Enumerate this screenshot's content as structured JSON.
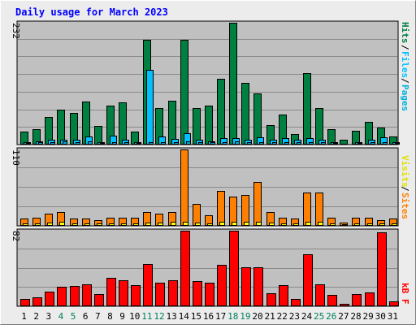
{
  "title": "Daily usage for March 2023",
  "colors": {
    "background": "#ececec",
    "plot_bg": "#c0c0c0",
    "frame": "#000000",
    "grid": "#8a8a8a",
    "title": "#0000ff",
    "hits": "#008040",
    "files": "#00c0ff",
    "pages": "#00b0d8",
    "sites": "#ff8000",
    "visits": "#ffff00",
    "kbf": "#ff0000",
    "weekend_label": "#00805c",
    "weekday_label": "#000000"
  },
  "legend": {
    "hits": "Hits",
    "files": "Files",
    "pages": "Pages",
    "sites": "Sites",
    "visits": "Visits",
    "kbf": "kB F",
    "separator": "/"
  },
  "chart_data": {
    "type": "bar",
    "categories": [
      "1",
      "2",
      "3",
      "4",
      "5",
      "6",
      "7",
      "8",
      "9",
      "10",
      "11",
      "12",
      "13",
      "14",
      "15",
      "16",
      "17",
      "18",
      "19",
      "20",
      "21",
      "22",
      "23",
      "24",
      "25",
      "26",
      "27",
      "28",
      "29",
      "30",
      "31"
    ],
    "weekend_days": [
      "4",
      "5",
      "11",
      "12",
      "18",
      "19",
      "25",
      "26"
    ],
    "panels": [
      {
        "id": "hits-files-pages",
        "ymax_label": "232",
        "ymax": 232,
        "series": [
          {
            "name": "Hits",
            "values": [
              24,
              30,
              52,
              66,
              60,
              82,
              36,
              74,
              81,
              24,
              200,
              70,
              84,
              200,
              70,
              75,
              126,
              232,
              117,
              97,
              37,
              57,
              20,
              136,
              70,
              29,
              10,
              27,
              44,
              33,
              15
            ]
          },
          {
            "name": "Files",
            "values": [
              4,
              6,
              9,
              10,
              9,
              16,
              4,
              17,
              9,
              4,
              142,
              15,
              11,
              22,
              9,
              6,
              12,
              12,
              9,
              14,
              9,
              13,
              9,
              13,
              9,
              5,
              2,
              5,
              9,
              14,
              5
            ]
          },
          {
            "name": "Pages",
            "values": [
              3,
              4,
              5,
              6,
              5,
              6,
              3,
              5,
              5,
              3,
              5,
              5,
              5,
              6,
              5,
              4,
              5,
              6,
              5,
              5,
              4,
              5,
              4,
              5,
              5,
              3,
              2,
              3,
              4,
              4,
              3
            ]
          }
        ]
      },
      {
        "id": "sites-visits",
        "ymax_label": "110",
        "ymax": 110,
        "series": [
          {
            "name": "Sites",
            "values": [
              10,
              12,
              18,
              20,
              10,
              10,
              8,
              12,
              12,
              12,
              20,
              18,
              20,
              110,
              32,
              15,
              50,
              42,
              45,
              63,
              20,
              12,
              10,
              48,
              48,
              12,
              5,
              12,
              12,
              8,
              10
            ]
          },
          {
            "name": "Visits",
            "values": [
              3,
              4,
              5,
              6,
              3,
              3,
              3,
              4,
              4,
              4,
              5,
              5,
              6,
              6,
              5,
              4,
              6,
              6,
              6,
              6,
              5,
              4,
              3,
              6,
              6,
              4,
              2,
              4,
              4,
              3,
              3
            ]
          }
        ]
      },
      {
        "id": "kbf",
        "ymax_label": "82",
        "ymax": 82,
        "series": [
          {
            "name": "kB F",
            "values": [
              8,
              10,
              16,
              21,
              22,
              24,
              13,
              31,
              28,
              23,
              46,
              26,
              28,
              82,
              27,
              26,
              45,
              82,
              42,
              42,
              14,
              23,
              8,
              56,
              24,
              12,
              3,
              13,
              15,
              80,
              5
            ]
          }
        ]
      }
    ]
  }
}
